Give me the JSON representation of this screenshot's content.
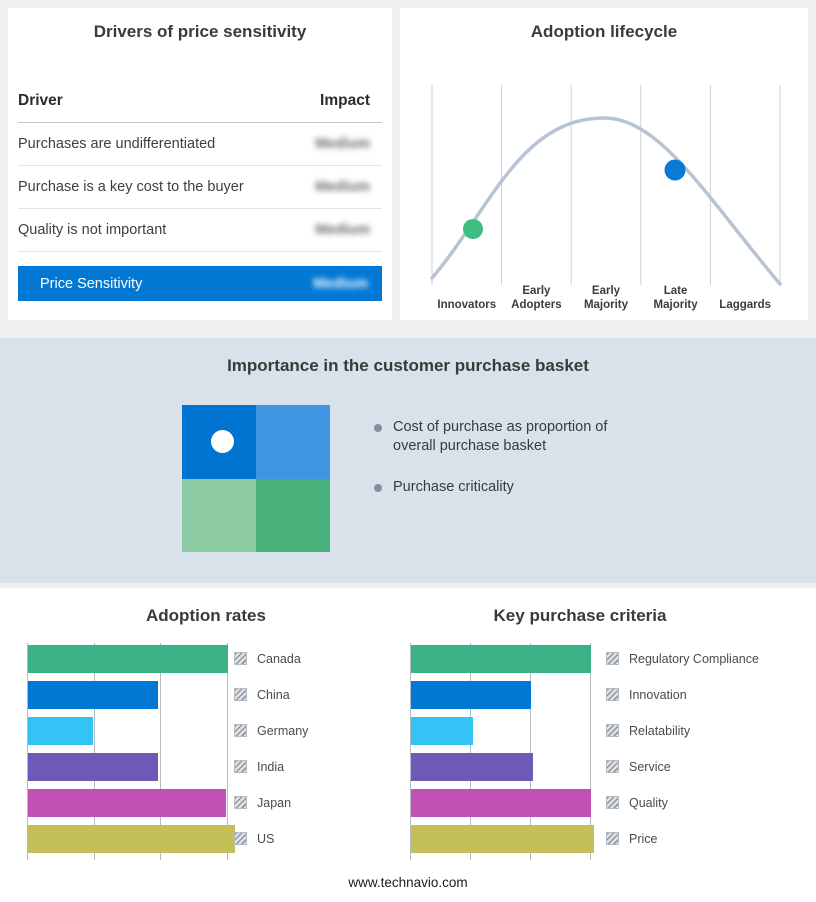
{
  "page": {
    "footer": "www.technavio.com",
    "background": "#eef0f2"
  },
  "drivers": {
    "title": "Drivers of price sensitivity",
    "header": {
      "driver": "Driver",
      "impact": "Impact"
    },
    "rows": [
      {
        "driver": "Purchases are undifferentiated",
        "impact": "Medium"
      },
      {
        "driver": "Purchase is a key cost to the buyer",
        "impact": "Medium"
      },
      {
        "driver": "Quality is not important",
        "impact": "Medium"
      }
    ],
    "summary": {
      "label": "Price Sensitivity",
      "impact": "Medium",
      "bar_color": "#0078d4"
    }
  },
  "lifecycle": {
    "title": "Adoption lifecycle",
    "stages": [
      "Innovators",
      "Early Adopters",
      "Early Majority",
      "Late Majority",
      "Laggards"
    ],
    "curve_color": "#b7c4d3",
    "markers": [
      {
        "name": "early-marker",
        "color": "#3fbd82",
        "stage": "Innovators"
      },
      {
        "name": "late-marker",
        "color": "#0b7ad4",
        "stage": "Late Majority"
      }
    ]
  },
  "importance": {
    "title": "Importance in the customer purchase basket",
    "bullets": [
      "Cost of purchase as proportion of overall purchase basket",
      "Purchase criticality"
    ],
    "quadrants": [
      "#0173d1",
      "#3f97e2",
      "#8ccaa3",
      "#48b07b"
    ],
    "band_color": "#d9e2ea"
  },
  "chart_data": [
    {
      "type": "bar",
      "orientation": "horizontal",
      "title": "Adoption rates",
      "categories": [
        "Canada",
        "China",
        "Germany",
        "India",
        "Japan",
        "US"
      ],
      "values": [
        3.0,
        1.95,
        0.98,
        1.95,
        2.97,
        3.1
      ],
      "colors": [
        "#3eb287",
        "#0078d4",
        "#33c3f5",
        "#6e58b8",
        "#c150b5",
        "#c5bf58"
      ],
      "xlim": [
        0,
        3.1
      ],
      "gridline_values": [
        0,
        1,
        2,
        3
      ],
      "legend_position": "right",
      "xlabel": "",
      "ylabel": ""
    },
    {
      "type": "bar",
      "orientation": "horizontal",
      "title": "Key purchase criteria",
      "categories": [
        "Regulatory Compliance",
        "Innovation",
        "Relatability",
        "Service",
        "Quality",
        "Price"
      ],
      "values": [
        3.0,
        2.0,
        1.03,
        2.03,
        3.0,
        3.05
      ],
      "colors": [
        "#3eb287",
        "#0078d4",
        "#33c3f5",
        "#6e58b8",
        "#c150b5",
        "#c5bf58"
      ],
      "xlim": [
        0,
        3.05
      ],
      "gridline_values": [
        0,
        1,
        2,
        3
      ],
      "legend_position": "right",
      "xlabel": "",
      "ylabel": ""
    }
  ]
}
